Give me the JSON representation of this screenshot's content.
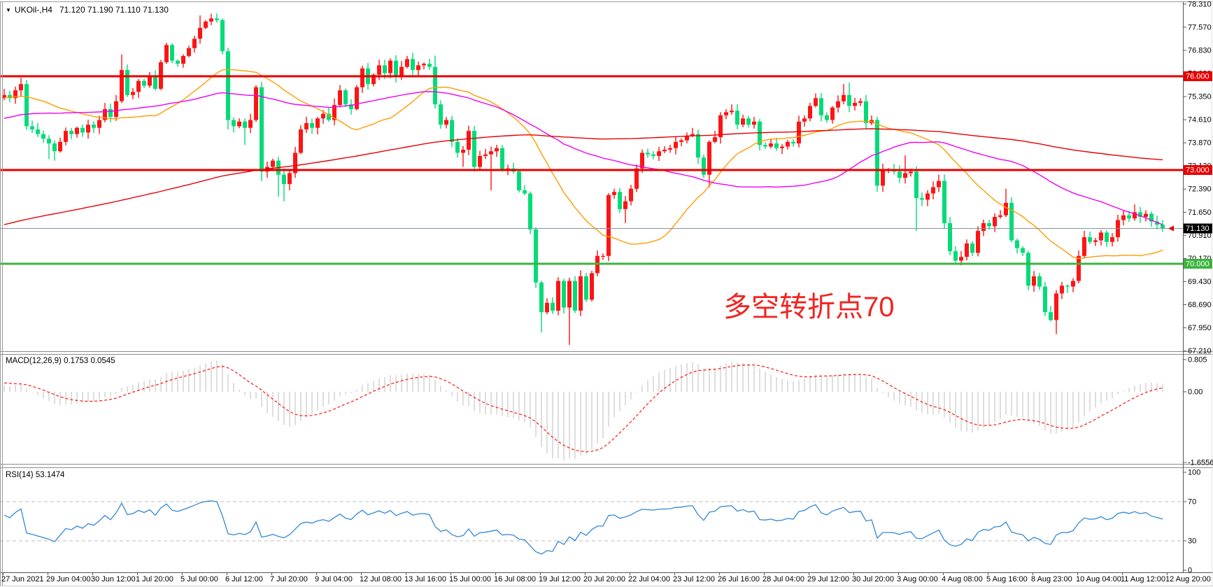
{
  "window": {
    "symbol_triangle": "▼",
    "symbol": "UKOil-,H4",
    "ohlc_line": "71.120 71.190 71.110 71.130"
  },
  "annotation": {
    "text": "多空转折点70",
    "color": "#f2231f"
  },
  "time_axis": {
    "labels": [
      "27 Jun 2021",
      "29 Jun 04:00",
      "30 Jun 12:00",
      "1 Jul 20:00",
      "5 Jul 00:00",
      "6 Jul 12:00",
      "7 Jul 20:00",
      "9 Jul 04:00",
      "12 Jul 08:00",
      "13 Jul 16:00",
      "15 Jul 00:00",
      "16 Jul 08:00",
      "19 Jul 12:00",
      "20 Jul 20:00",
      "22 Jul 04:00",
      "23 Jul 12:00",
      "26 Jul 16:00",
      "28 Jul 04:00",
      "29 Jul 12:00",
      "30 Jul 20:00",
      "3 Aug 00:00",
      "4 Aug 08:00",
      "5 Aug 16:00",
      "8 Aug 23:00",
      "10 Aug 04:00",
      "11 Aug 12:00",
      "12 Aug 20:00"
    ]
  },
  "chart_data": [
    {
      "type": "candlestick",
      "title": "UKOil-,H4",
      "timeframe": "H4",
      "up_color": "#fe1414",
      "down_color": "#00dc78",
      "first_open": 75.3,
      "closes": [
        75.4,
        75.3,
        75.55,
        75.75,
        74.4,
        74.3,
        74.15,
        74.0,
        73.85,
        73.6,
        73.9,
        74.25,
        74.15,
        74.35,
        74.2,
        74.45,
        74.35,
        74.6,
        74.95,
        74.7,
        75.2,
        76.2,
        75.4,
        75.5,
        75.85,
        75.7,
        76.0,
        75.6,
        76.45,
        77.0,
        76.5,
        76.4,
        76.65,
        76.9,
        77.2,
        77.55,
        77.75,
        77.85,
        77.8,
        76.8,
        74.6,
        74.4,
        74.55,
        74.35,
        74.6,
        75.65,
        72.95,
        73.1,
        73.3,
        72.85,
        72.55,
        72.9,
        73.55,
        74.3,
        74.5,
        74.35,
        74.65,
        74.8,
        74.6,
        75.08,
        75.55,
        75.1,
        74.95,
        75.65,
        76.25,
        75.75,
        76.05,
        76.35,
        76.1,
        76.5,
        76.0,
        76.3,
        76.55,
        76.2,
        76.35,
        76.4,
        76.3,
        75.1,
        74.45,
        74.6,
        73.9,
        73.55,
        73.65,
        74.25,
        73.1,
        73.45,
        73.5,
        73.6,
        73.7,
        73.0,
        73.05,
        72.95,
        72.35,
        72.25,
        71.1,
        69.4,
        68.45,
        68.75,
        68.5,
        69.45,
        68.6,
        69.45,
        68.5,
        69.6,
        68.85,
        69.7,
        70.25,
        70.25,
        72.2,
        72.3,
        71.75,
        72.0,
        72.4,
        73.05,
        73.55,
        73.5,
        73.45,
        73.6,
        73.65,
        73.7,
        73.9,
        73.95,
        74.1,
        74.15,
        73.4,
        72.85,
        73.9,
        74.05,
        74.75,
        74.85,
        74.9,
        74.45,
        74.65,
        74.45,
        74.55,
        73.8,
        73.75,
        73.85,
        73.7,
        73.75,
        73.9,
        73.85,
        74.55,
        74.65,
        75.05,
        75.3,
        74.75,
        74.6,
        75.0,
        75.2,
        75.4,
        75.05,
        75.15,
        75.2,
        74.5,
        74.6,
        72.5,
        73.0,
        73.0,
        72.95,
        72.75,
        72.9,
        72.95,
        72.1,
        72.05,
        72.25,
        72.45,
        72.65,
        71.3,
        70.4,
        70.1,
        70.22,
        70.65,
        70.35,
        71.05,
        71.3,
        71.2,
        71.5,
        71.55,
        71.95,
        70.75,
        70.5,
        70.35,
        69.3,
        69.6,
        69.27,
        68.45,
        68.2,
        69.05,
        69.3,
        69.27,
        69.45,
        70.25,
        70.85,
        70.7,
        70.75,
        71.0,
        70.7,
        70.85,
        71.4,
        71.55,
        71.45,
        71.65,
        71.5,
        71.6,
        71.35,
        71.25,
        71.13
      ],
      "wick_high_overrides": {
        "3": 75.95,
        "21": 76.7,
        "35": 77.95,
        "37": 78.0,
        "72": 76.65,
        "77": 76.66,
        "130": 75.1,
        "145": 75.45,
        "150": 75.75,
        "151": 75.8,
        "161": 73.47,
        "179": 72.4,
        "202": 71.9
      },
      "wick_low_overrides": {
        "8": 73.35,
        "9": 73.3,
        "40": 74.3,
        "43": 73.8,
        "46": 72.65,
        "49": 72.15,
        "50": 72.0,
        "82": 73.1,
        "87": 72.35,
        "96": 67.8,
        "101": 67.4,
        "111": 71.3,
        "126": 72.45,
        "163": 71.05,
        "170": 70.04,
        "188": 67.75
      },
      "hlines": [
        {
          "price": 76.0,
          "label": "76.000",
          "color": "#e60000",
          "text": "#ffffff"
        },
        {
          "price": 73.0,
          "label": "73.000",
          "color": "#e60000",
          "text": "#ffffff"
        },
        {
          "price": 70.0,
          "label": "70.000",
          "color": "#3cb43c",
          "text": "#ffffff"
        }
      ],
      "bid": {
        "price": 71.13,
        "label": "71.130",
        "line_color": "#8593a3",
        "label_bg": "#000000"
      },
      "moving_averages": [
        {
          "period": 24,
          "color": "#ff9c00"
        },
        {
          "period": 55,
          "color": "#f000f0"
        },
        {
          "period": 200,
          "color": "#e60000"
        }
      ],
      "prehistory": {
        "start": 66.6,
        "flat": 73.0,
        "end": 75.45,
        "len": 200
      },
      "y_axis": {
        "top_price": 78.31,
        "step": 0.74,
        "labels": [
          "78.310",
          "77.570",
          "76.830",
          "76.090",
          "75.350",
          "74.610",
          "73.870",
          "73.130",
          "72.390",
          "71.650",
          "70.910",
          "70.170",
          "69.430",
          "68.690",
          "67.950",
          "67.210"
        ]
      }
    },
    {
      "type": "macd_histogram",
      "label": "MACD(12,26,9)",
      "values_text": "0.1753 0.0545",
      "fast": 12,
      "slow": 26,
      "signal": 9,
      "axis_labels": {
        "max": "0.805",
        "zero": "0.00",
        "min": "-1.6556"
      },
      "histogram_color": "#c9c9c9",
      "signal_color": "#fe1414"
    },
    {
      "type": "rsi_line",
      "label": "RSI(14)",
      "value_text": "53.1474",
      "period": 14,
      "levels": [
        70,
        30
      ],
      "axis_labels": [
        "100",
        "70",
        "30",
        "0"
      ],
      "line_color": "#3188d6",
      "level_color": "#bdbdbd"
    }
  ]
}
